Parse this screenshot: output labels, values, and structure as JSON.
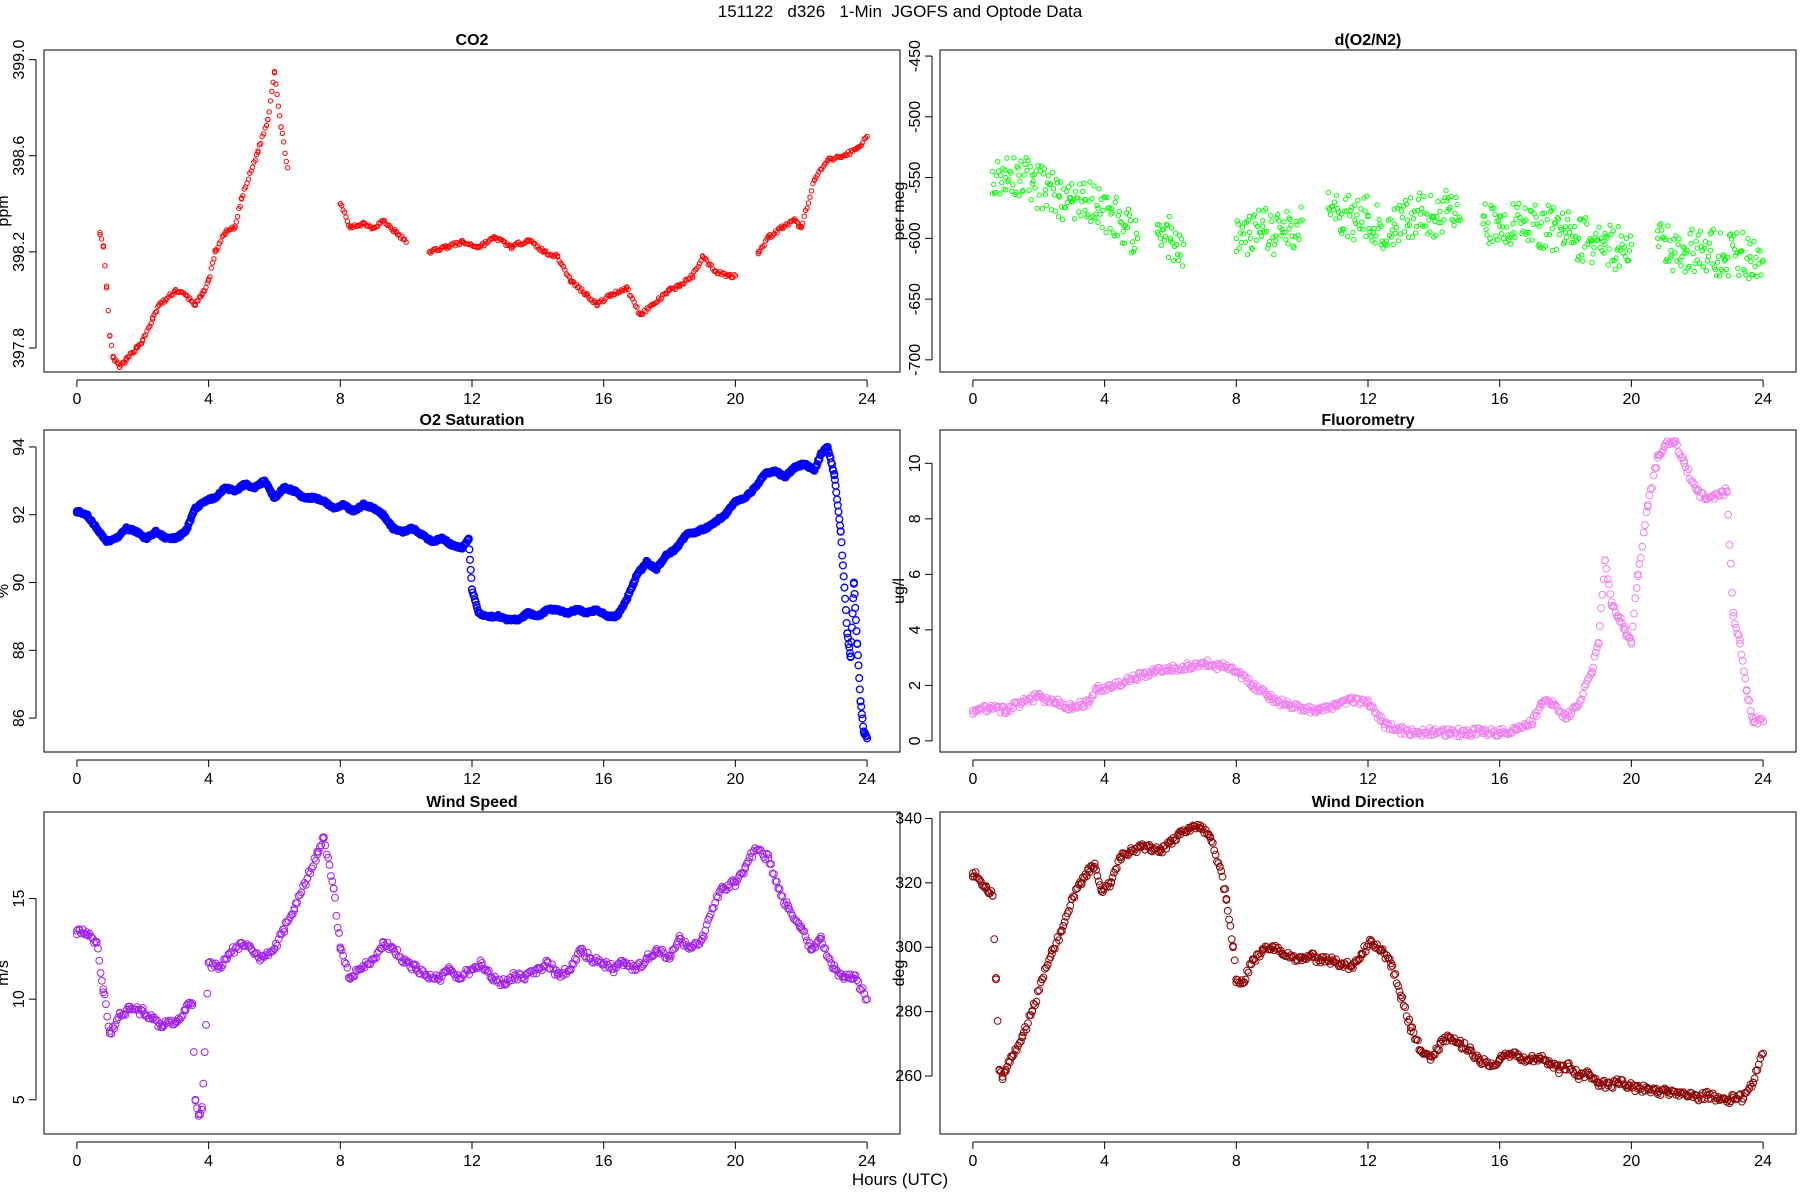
{
  "page": {
    "title": "151122   d326   1-Min  JGOFS and Optode Data",
    "xlabel": "Hours (UTC)"
  },
  "chart_data": [
    {
      "id": "co2",
      "type": "scatter",
      "title": "CO2",
      "ylabel": "ppm",
      "color": "#ff0000",
      "xlim": [
        -1,
        25
      ],
      "ylim": [
        397.7,
        399.04
      ],
      "xticks": [
        0,
        4,
        8,
        12,
        16,
        20,
        24
      ],
      "yticks": [
        397.8,
        398.2,
        398.6,
        399.0
      ],
      "yrotate": true,
      "x": [
        0.7,
        0.8,
        0.9,
        1.0,
        1.1,
        1.3,
        1.5,
        1.8,
        2.0,
        2.3,
        2.5,
        2.7,
        3.0,
        3.3,
        3.6,
        3.8,
        4.0,
        4.2,
        4.5,
        4.8,
        5.0,
        5.5,
        5.8,
        6.0,
        6.2,
        6.4,
        8.0,
        8.3,
        8.7,
        9.0,
        9.3,
        9.7,
        10.0,
        10.7,
        11.2,
        11.7,
        12.2,
        12.7,
        13.2,
        13.7,
        14.2,
        14.6,
        15.0,
        15.5,
        15.8,
        16.2,
        16.7,
        17.1,
        17.5,
        18.0,
        18.3,
        18.7,
        19.0,
        19.4,
        19.8,
        20.0,
        20.7,
        21.0,
        21.4,
        21.8,
        22.0,
        22.4,
        22.8,
        23.3,
        23.7,
        24.0
      ],
      "y": [
        398.28,
        398.22,
        398.05,
        397.85,
        397.76,
        397.72,
        397.75,
        397.8,
        397.83,
        397.92,
        397.98,
        398.0,
        398.04,
        398.02,
        397.98,
        398.02,
        398.08,
        398.2,
        398.28,
        398.3,
        398.42,
        398.62,
        398.75,
        398.95,
        398.72,
        398.55,
        398.4,
        398.3,
        398.32,
        398.3,
        398.33,
        398.28,
        398.24,
        398.2,
        398.22,
        398.24,
        398.22,
        398.26,
        398.22,
        398.25,
        398.2,
        398.18,
        398.08,
        398.02,
        397.98,
        398.02,
        398.05,
        397.94,
        397.98,
        398.04,
        398.06,
        398.1,
        398.18,
        398.12,
        398.1,
        398.1,
        398.2,
        398.26,
        398.3,
        398.33,
        398.3,
        398.5,
        398.58,
        398.6,
        398.63,
        398.68
      ],
      "marker": "ring-small"
    },
    {
      "id": "do2n2",
      "type": "scatter",
      "title": "d(O2/N2)",
      "ylabel": "per meg",
      "color": "#00ff00",
      "xlim": [
        -1,
        25
      ],
      "ylim": [
        -710,
        -445
      ],
      "xticks": [
        0,
        4,
        8,
        12,
        16,
        20,
        24
      ],
      "yticks": [
        -700,
        -650,
        -600,
        -550,
        -500,
        -450
      ],
      "yrotate": true,
      "x": [
        0.6,
        1.0,
        1.4,
        1.8,
        2.2,
        2.6,
        3.0,
        3.4,
        3.8,
        4.2,
        4.6,
        5.0,
        5.6,
        6.0,
        6.4,
        8.0,
        8.4,
        8.8,
        9.2,
        9.6,
        10.0,
        10.8,
        11.2,
        11.6,
        12.0,
        12.4,
        12.8,
        13.2,
        13.6,
        14.0,
        14.4,
        14.8,
        15.5,
        16.0,
        16.4,
        16.8,
        17.2,
        17.6,
        18.0,
        18.4,
        18.8,
        19.2,
        19.6,
        20.0,
        20.8,
        21.2,
        21.6,
        22.0,
        22.4,
        22.8,
        23.2,
        23.6,
        24.0
      ],
      "y": [
        -545,
        -550,
        -548,
        -555,
        -560,
        -565,
        -570,
        -568,
        -575,
        -580,
        -590,
        -600,
        -595,
        -600,
        -605,
        -600,
        -595,
        -590,
        -598,
        -592,
        -585,
        -575,
        -580,
        -585,
        -582,
        -590,
        -588,
        -585,
        -580,
        -582,
        -578,
        -585,
        -588,
        -590,
        -588,
        -585,
        -590,
        -592,
        -595,
        -600,
        -602,
        -605,
        -608,
        -605,
        -600,
        -610,
        -612,
        -608,
        -610,
        -615,
        -612,
        -615,
        -618
      ],
      "marker": "ring-small"
    },
    {
      "id": "o2sat",
      "type": "scatter",
      "title": "O2 Saturation",
      "ylabel": "%",
      "color": "#0000ff",
      "xlim": [
        -1,
        25
      ],
      "ylim": [
        85.0,
        94.5
      ],
      "xticks": [
        0,
        4,
        8,
        12,
        16,
        20,
        24
      ],
      "yticks": [
        86,
        88,
        90,
        92,
        94
      ],
      "yrotate": true,
      "x": [
        0.0,
        0.3,
        0.6,
        0.9,
        1.2,
        1.5,
        1.8,
        2.1,
        2.4,
        2.7,
        3.0,
        3.3,
        3.6,
        3.9,
        4.2,
        4.5,
        4.8,
        5.1,
        5.4,
        5.7,
        6.0,
        6.3,
        6.6,
        6.9,
        7.2,
        7.5,
        7.8,
        8.1,
        8.4,
        8.7,
        9.0,
        9.3,
        9.6,
        9.9,
        10.2,
        10.5,
        10.8,
        11.1,
        11.4,
        11.7,
        11.9,
        12.0,
        12.2,
        12.5,
        12.8,
        13.1,
        13.4,
        13.7,
        14.0,
        14.3,
        14.6,
        14.9,
        15.2,
        15.5,
        15.8,
        16.1,
        16.4,
        16.7,
        17.0,
        17.3,
        17.6,
        17.9,
        18.2,
        18.5,
        18.8,
        19.1,
        19.4,
        19.7,
        20.0,
        20.3,
        20.6,
        20.9,
        21.2,
        21.5,
        21.8,
        22.1,
        22.4,
        22.6,
        22.8,
        23.0,
        23.2,
        23.4,
        23.5,
        23.6,
        23.7,
        23.8,
        23.9,
        24.0
      ],
      "y": [
        92.1,
        92.0,
        91.6,
        91.2,
        91.3,
        91.6,
        91.5,
        91.3,
        91.5,
        91.3,
        91.3,
        91.5,
        92.2,
        92.4,
        92.5,
        92.8,
        92.7,
        92.9,
        92.8,
        93.0,
        92.5,
        92.8,
        92.7,
        92.5,
        92.5,
        92.4,
        92.2,
        92.3,
        92.1,
        92.3,
        92.2,
        92.0,
        91.6,
        91.5,
        91.6,
        91.4,
        91.2,
        91.3,
        91.1,
        91.0,
        91.3,
        89.8,
        89.1,
        89.0,
        89.0,
        88.9,
        88.9,
        89.1,
        89.0,
        89.2,
        89.2,
        89.1,
        89.2,
        89.1,
        89.2,
        89.0,
        89.0,
        89.5,
        90.2,
        90.6,
        90.4,
        90.8,
        91.0,
        91.4,
        91.5,
        91.6,
        91.8,
        92.0,
        92.4,
        92.5,
        92.8,
        93.2,
        93.3,
        93.1,
        93.4,
        93.5,
        93.3,
        93.8,
        94.0,
        93.2,
        91.5,
        88.5,
        87.8,
        90.0,
        88.2,
        86.5,
        85.6,
        85.4
      ],
      "marker": "ring-dense"
    },
    {
      "id": "fluor",
      "type": "scatter",
      "title": "Fluorometry",
      "ylabel": "ug/l",
      "color": "#ee82ee",
      "xlim": [
        -1,
        25
      ],
      "ylim": [
        -0.4,
        11.2
      ],
      "xticks": [
        0,
        4,
        8,
        12,
        16,
        20,
        24
      ],
      "yticks": [
        0,
        2,
        4,
        6,
        8,
        10
      ],
      "yrotate": true,
      "x": [
        0.0,
        0.5,
        1.0,
        1.5,
        2.0,
        2.5,
        3.0,
        3.5,
        3.8,
        4.2,
        4.6,
        5.0,
        5.5,
        6.0,
        6.5,
        7.0,
        7.5,
        8.0,
        8.5,
        9.0,
        9.5,
        10.0,
        10.5,
        11.0,
        11.5,
        12.0,
        12.5,
        13.0,
        13.5,
        14.0,
        14.5,
        15.0,
        15.5,
        16.0,
        16.5,
        17.0,
        17.3,
        17.6,
        18.0,
        18.4,
        18.8,
        19.0,
        19.2,
        19.4,
        19.6,
        19.8,
        20.0,
        20.2,
        20.5,
        20.8,
        21.0,
        21.3,
        21.6,
        22.0,
        22.3,
        22.6,
        22.9,
        23.1,
        23.3,
        23.5,
        23.7,
        24.0
      ],
      "y": [
        1.1,
        1.2,
        1.1,
        1.4,
        1.6,
        1.4,
        1.2,
        1.4,
        1.9,
        1.9,
        2.1,
        2.3,
        2.5,
        2.6,
        2.7,
        2.8,
        2.7,
        2.5,
        2.0,
        1.6,
        1.3,
        1.2,
        1.1,
        1.3,
        1.5,
        1.4,
        0.6,
        0.4,
        0.3,
        0.35,
        0.3,
        0.3,
        0.35,
        0.3,
        0.4,
        0.7,
        1.4,
        1.3,
        0.8,
        1.3,
        2.5,
        3.5,
        6.5,
        5.0,
        4.5,
        4.0,
        3.5,
        6.0,
        8.5,
        10.2,
        10.6,
        10.8,
        10.0,
        9.0,
        8.7,
        8.9,
        9.0,
        4.5,
        3.5,
        1.8,
        0.8,
        0.7
      ],
      "marker": "ring-large"
    },
    {
      "id": "wspd",
      "type": "scatter",
      "title": "Wind Speed",
      "ylabel": "m/s",
      "color": "#a020f0",
      "xlim": [
        -1,
        25
      ],
      "ylim": [
        3.3,
        19.3
      ],
      "xticks": [
        0,
        4,
        8,
        12,
        16,
        20,
        24
      ],
      "yticks": [
        5,
        10,
        15
      ],
      "yrotate": true,
      "x": [
        0.0,
        0.3,
        0.6,
        0.8,
        1.0,
        1.3,
        1.6,
        2.0,
        2.3,
        2.6,
        3.0,
        3.3,
        3.5,
        3.6,
        3.7,
        3.8,
        4.0,
        4.3,
        4.6,
        5.0,
        5.3,
        5.6,
        6.0,
        6.3,
        6.6,
        7.0,
        7.3,
        7.5,
        7.8,
        8.0,
        8.3,
        8.6,
        9.0,
        9.3,
        9.6,
        10.0,
        10.3,
        10.6,
        11.0,
        11.3,
        11.6,
        12.0,
        12.3,
        12.6,
        13.0,
        13.3,
        13.6,
        14.0,
        14.3,
        14.6,
        15.0,
        15.3,
        15.6,
        16.0,
        16.3,
        16.6,
        17.0,
        17.3,
        17.6,
        18.0,
        18.3,
        18.6,
        19.0,
        19.3,
        19.6,
        20.0,
        20.3,
        20.6,
        21.0,
        21.3,
        21.6,
        22.0,
        22.3,
        22.6,
        23.0,
        23.3,
        23.6,
        24.0
      ],
      "y": [
        13.4,
        13.2,
        12.8,
        10.5,
        8.3,
        9.3,
        9.5,
        9.4,
        9.0,
        8.7,
        8.9,
        9.5,
        9.8,
        5.0,
        4.2,
        4.5,
        11.8,
        11.5,
        12.2,
        12.8,
        12.5,
        12.0,
        12.5,
        13.5,
        14.5,
        16.0,
        17.2,
        18.0,
        15.5,
        12.5,
        11.0,
        11.5,
        12.0,
        12.8,
        12.5,
        11.8,
        11.5,
        11.2,
        11.0,
        11.5,
        11.0,
        11.5,
        11.8,
        11.0,
        10.8,
        11.2,
        11.0,
        11.5,
        11.8,
        11.2,
        11.5,
        12.5,
        12.0,
        11.8,
        11.5,
        11.8,
        11.5,
        12.0,
        12.5,
        12.0,
        13.0,
        12.5,
        13.0,
        14.5,
        15.5,
        15.8,
        16.5,
        17.5,
        17.0,
        15.5,
        14.5,
        13.5,
        12.5,
        13.0,
        11.5,
        11.0,
        11.2,
        10.0
      ],
      "marker": "ring-large"
    },
    {
      "id": "wdir",
      "type": "scatter",
      "title": "Wind Direction",
      "ylabel": "deg",
      "color": "#8b0000",
      "xlim": [
        -1,
        25
      ],
      "ylim": [
        242,
        342
      ],
      "xticks": [
        0,
        4,
        8,
        12,
        16,
        20,
        24
      ],
      "yticks": [
        260,
        280,
        300,
        320,
        340
      ],
      "yrotate": false,
      "x": [
        0.0,
        0.2,
        0.4,
        0.6,
        0.7,
        0.8,
        0.9,
        1.0,
        1.2,
        1.5,
        1.8,
        2.1,
        2.4,
        2.7,
        3.0,
        3.3,
        3.5,
        3.7,
        3.9,
        4.2,
        4.5,
        4.8,
        5.1,
        5.4,
        5.7,
        6.0,
        6.3,
        6.6,
        6.9,
        7.2,
        7.5,
        7.7,
        7.9,
        8.0,
        8.2,
        8.5,
        8.8,
        9.1,
        9.4,
        9.7,
        10.0,
        10.3,
        10.6,
        10.9,
        11.2,
        11.5,
        11.8,
        12.1,
        12.4,
        12.7,
        13.0,
        13.3,
        13.6,
        13.9,
        14.2,
        14.5,
        14.8,
        15.1,
        15.4,
        15.7,
        16.0,
        16.3,
        16.6,
        16.9,
        17.2,
        17.5,
        17.8,
        18.1,
        18.4,
        18.7,
        19.0,
        19.3,
        19.6,
        19.9,
        20.2,
        20.5,
        20.8,
        21.1,
        21.4,
        21.7,
        22.0,
        22.3,
        22.6,
        22.9,
        23.1,
        23.4,
        23.7,
        24.0
      ],
      "y": [
        323,
        321,
        319,
        316,
        290,
        262,
        259,
        262,
        266,
        272,
        280,
        290,
        298,
        305,
        315,
        320,
        324,
        326,
        318,
        320,
        328,
        330,
        331,
        331,
        330,
        333,
        335,
        337,
        337,
        334,
        325,
        315,
        300,
        290,
        289,
        296,
        299,
        300,
        298,
        297,
        296,
        297,
        296,
        296,
        295,
        294,
        298,
        302,
        299,
        295,
        285,
        275,
        268,
        265,
        270,
        272,
        270,
        268,
        265,
        263,
        265,
        267,
        266,
        265,
        266,
        264,
        262,
        263,
        260,
        261,
        258,
        257,
        258,
        257,
        256,
        256,
        255,
        255,
        255,
        254,
        253,
        254,
        253,
        252,
        254,
        253,
        258,
        267
      ],
      "marker": "ring-large"
    }
  ]
}
